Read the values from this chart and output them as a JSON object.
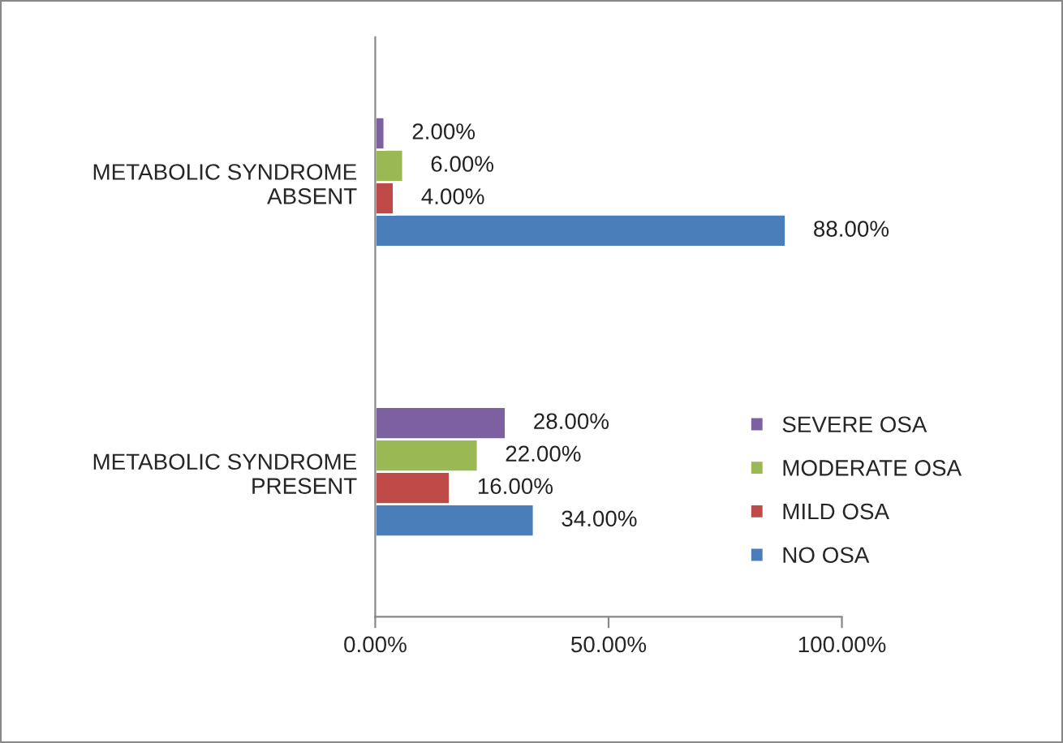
{
  "chart_data": {
    "type": "bar",
    "orientation": "horizontal",
    "categories": [
      "METABOLIC SYNDROME\nABSENT",
      "METABOLIC SYNDROME\nPRESENT"
    ],
    "series": [
      {
        "name": "NO OSA",
        "color": "#4a7ebb",
        "values": [
          88,
          34
        ],
        "value_labels": [
          "88.00%",
          "34.00%"
        ]
      },
      {
        "name": "MILD OSA",
        "color": "#be4b48",
        "values": [
          4,
          16
        ],
        "value_labels": [
          "4.00%",
          "16.00%"
        ]
      },
      {
        "name": "MODERATE OSA",
        "color": "#98b954",
        "values": [
          6,
          22
        ],
        "value_labels": [
          "6.00%",
          "22.00%"
        ]
      },
      {
        "name": "SEVERE OSA",
        "color": "#7d60a0",
        "values": [
          2,
          28
        ],
        "value_labels": [
          "2.00%",
          "28.00%"
        ]
      }
    ],
    "xlim": [
      0,
      100
    ],
    "xticks": [
      {
        "value": 0,
        "label": "0.00%"
      },
      {
        "value": 50,
        "label": "50.00%"
      },
      {
        "value": 100,
        "label": "100.00%"
      }
    ],
    "legend": "bottom right",
    "grid": false
  }
}
